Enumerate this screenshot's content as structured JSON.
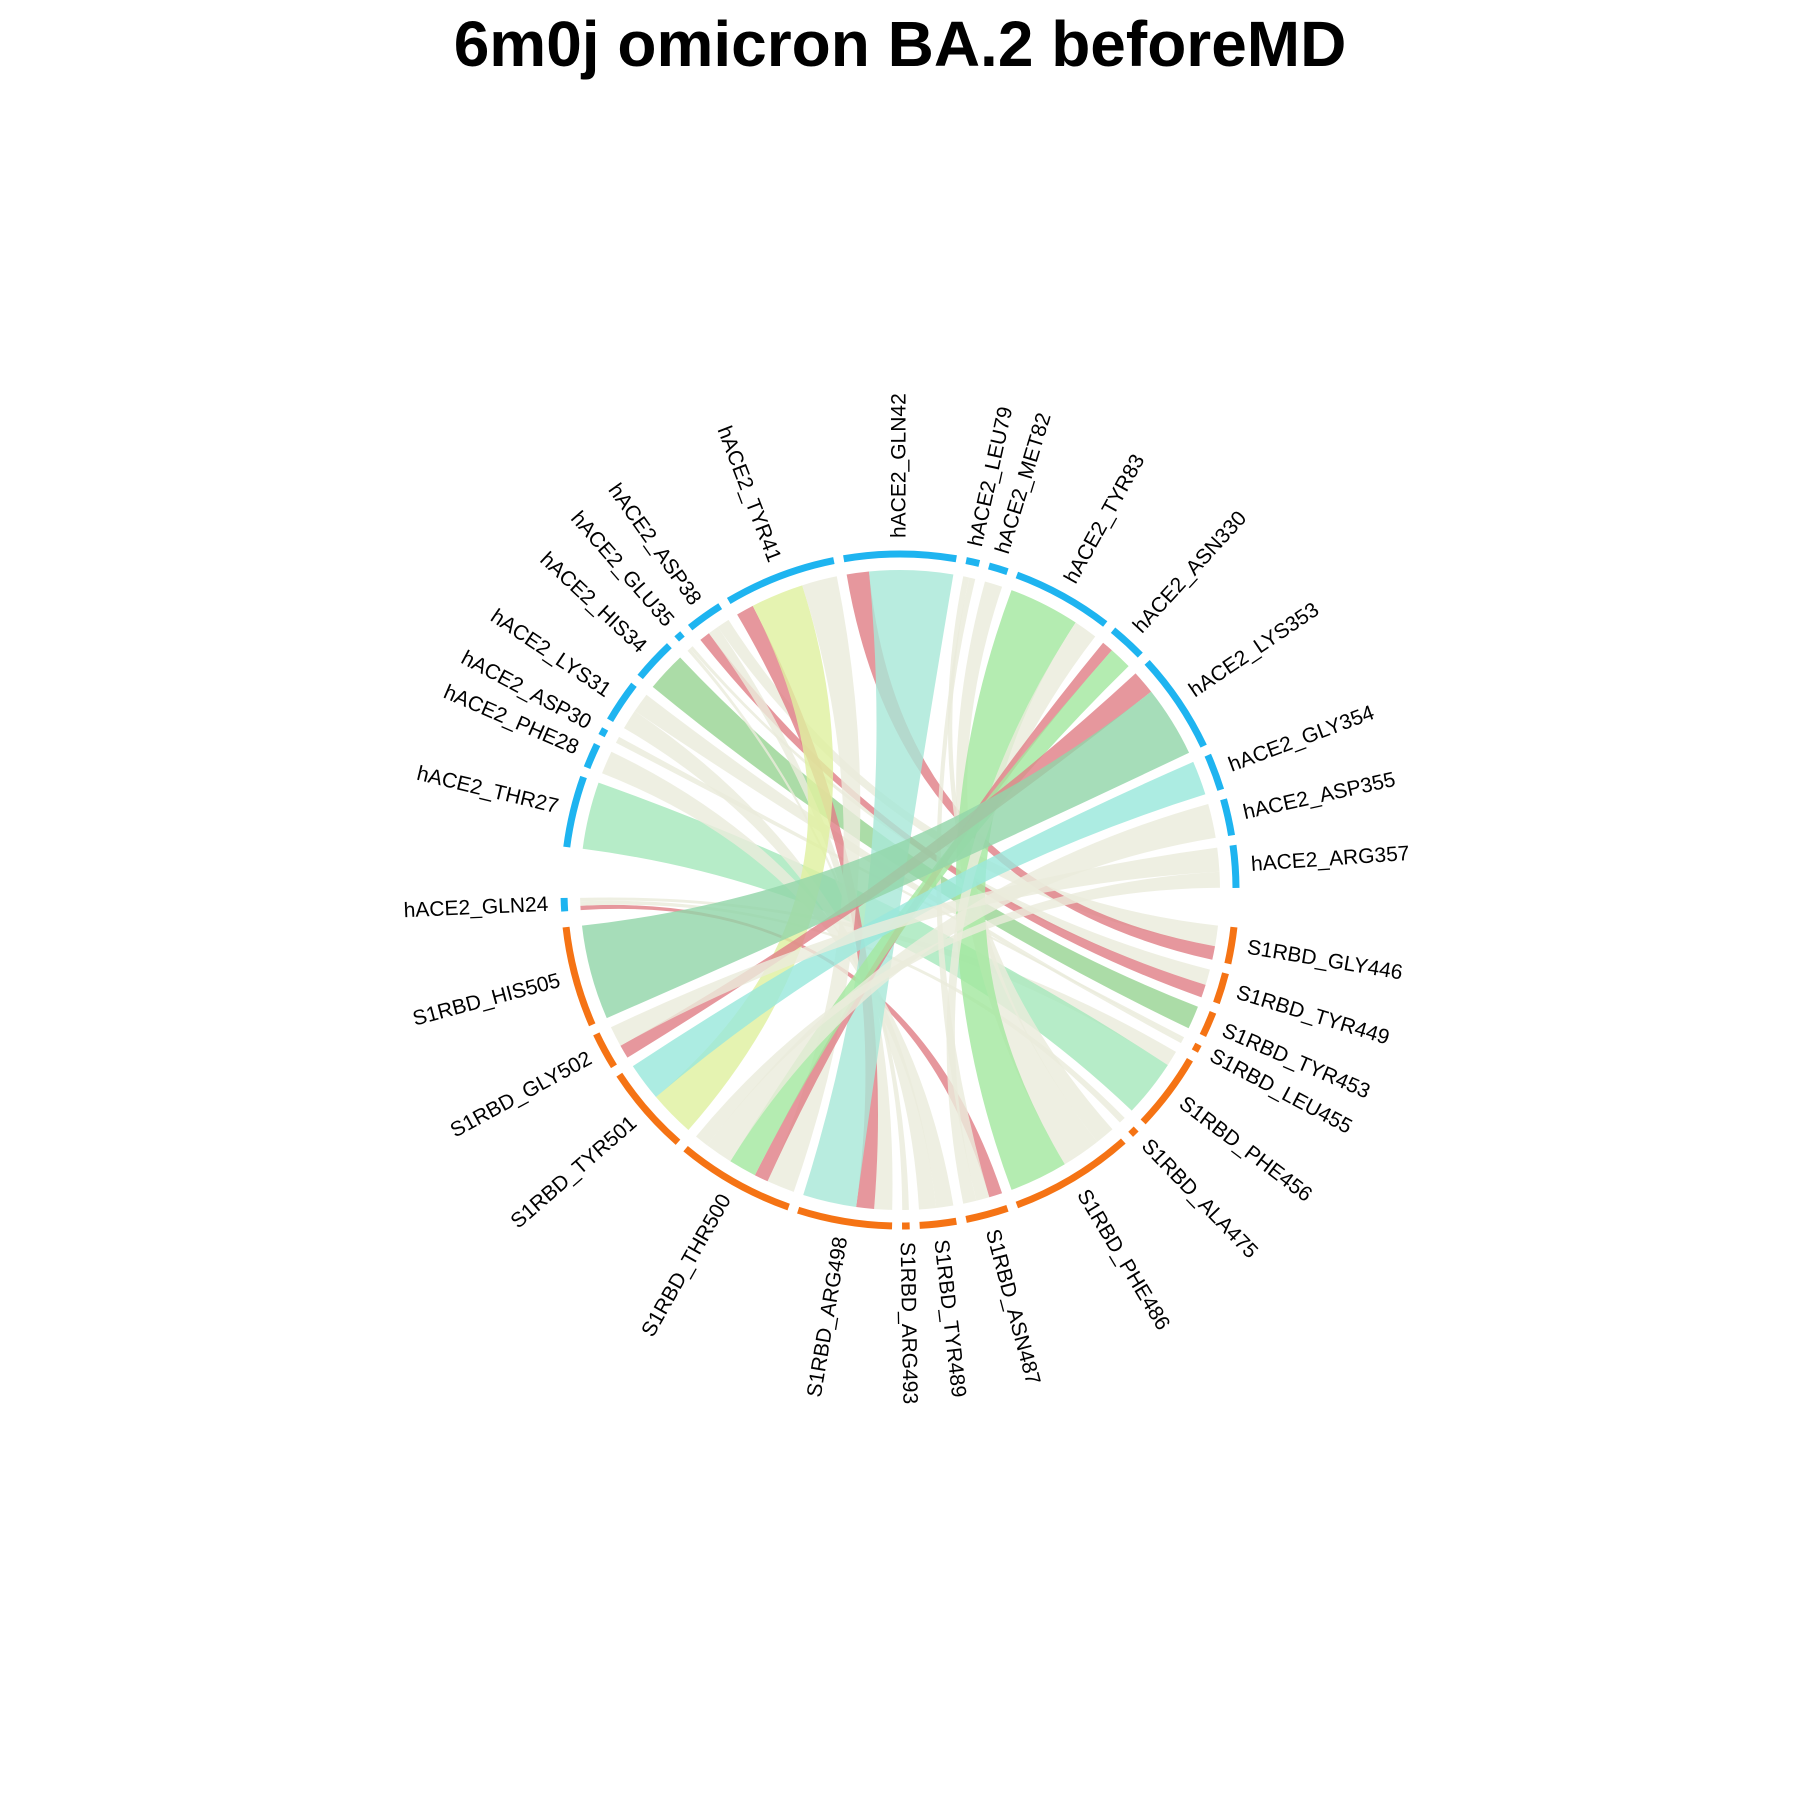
{
  "chart_data": {
    "type": "chord",
    "title": "6m0j omicron BA.2 beforeMD",
    "group_colors": {
      "hACE2": "#1eb4f0",
      "S1RBD": "#f57314"
    },
    "sectors": [
      {
        "name": "hACE2_GLN24",
        "group": "hACE2"
      },
      {
        "name": "hACE2_THR27",
        "group": "hACE2"
      },
      {
        "name": "hACE2_PHE28",
        "group": "hACE2"
      },
      {
        "name": "hACE2_ASP30",
        "group": "hACE2"
      },
      {
        "name": "hACE2_LYS31",
        "group": "hACE2"
      },
      {
        "name": "hACE2_HIS34",
        "group": "hACE2"
      },
      {
        "name": "hACE2_GLU35",
        "group": "hACE2"
      },
      {
        "name": "hACE2_ASP38",
        "group": "hACE2"
      },
      {
        "name": "hACE2_TYR41",
        "group": "hACE2"
      },
      {
        "name": "hACE2_GLN42",
        "group": "hACE2"
      },
      {
        "name": "hACE2_LEU79",
        "group": "hACE2"
      },
      {
        "name": "hACE2_MET82",
        "group": "hACE2"
      },
      {
        "name": "hACE2_TYR83",
        "group": "hACE2"
      },
      {
        "name": "hACE2_ASN330",
        "group": "hACE2"
      },
      {
        "name": "hACE2_LYS353",
        "group": "hACE2"
      },
      {
        "name": "hACE2_GLY354",
        "group": "hACE2"
      },
      {
        "name": "hACE2_ASP355",
        "group": "hACE2"
      },
      {
        "name": "hACE2_ARG357",
        "group": "hACE2"
      },
      {
        "name": "S1RBD_GLY446",
        "group": "S1RBD"
      },
      {
        "name": "S1RBD_TYR449",
        "group": "S1RBD"
      },
      {
        "name": "S1RBD_TYR453",
        "group": "S1RBD"
      },
      {
        "name": "S1RBD_LEU455",
        "group": "S1RBD"
      },
      {
        "name": "S1RBD_PHE456",
        "group": "S1RBD"
      },
      {
        "name": "S1RBD_ALA475",
        "group": "S1RBD"
      },
      {
        "name": "S1RBD_PHE486",
        "group": "S1RBD"
      },
      {
        "name": "S1RBD_ASN487",
        "group": "S1RBD"
      },
      {
        "name": "S1RBD_TYR489",
        "group": "S1RBD"
      },
      {
        "name": "S1RBD_ARG493",
        "group": "S1RBD"
      },
      {
        "name": "S1RBD_ARG498",
        "group": "S1RBD"
      },
      {
        "name": "S1RBD_THR500",
        "group": "S1RBD"
      },
      {
        "name": "S1RBD_TYR501",
        "group": "S1RBD"
      },
      {
        "name": "S1RBD_GLY502",
        "group": "S1RBD"
      },
      {
        "name": "S1RBD_HIS505",
        "group": "S1RBD"
      }
    ],
    "links": [
      {
        "source": "hACE2_GLN24",
        "target": "S1RBD_ASN487",
        "value": 1,
        "color": "#e08088"
      },
      {
        "source": "hACE2_GLN24",
        "target": "S1RBD_ALA475",
        "value": 1,
        "color": "#eaecdc"
      },
      {
        "source": "hACE2_GLN24",
        "target": "S1RBD_PHE456",
        "value": 0.8,
        "color": "#eaecdc"
      },
      {
        "source": "hACE2_THR27",
        "target": "S1RBD_PHE456",
        "value": 3,
        "color": "#a6e8bc"
      },
      {
        "source": "hACE2_PHE28",
        "target": "S1RBD_TYR489",
        "value": 1.5,
        "color": "#eaecdc"
      },
      {
        "source": "hACE2_ASP30",
        "target": "S1RBD_LEU455",
        "value": 1,
        "color": "#eaecdc"
      },
      {
        "source": "hACE2_LYS31",
        "target": "S1RBD_TYR489",
        "value": 1.5,
        "color": "#eaecdc"
      },
      {
        "source": "hACE2_LYS31",
        "target": "S1RBD_LEU455",
        "value": 1.5,
        "color": "#eaecdc"
      },
      {
        "source": "hACE2_HIS34",
        "target": "S1RBD_TYR453",
        "value": 2.5,
        "color": "#98d494"
      },
      {
        "source": "hACE2_GLU35",
        "target": "S1RBD_ARG493",
        "value": 1.2,
        "color": "#eaecdc"
      },
      {
        "source": "hACE2_GLU35",
        "target": "S1RBD_TYR449",
        "value": 1.2,
        "color": "#eaecdc"
      },
      {
        "source": "hACE2_ASP38",
        "target": "S1RBD_TYR449",
        "value": 1,
        "color": "#e08088"
      },
      {
        "source": "hACE2_ASP38",
        "target": "S1RBD_ARG498",
        "value": 1,
        "color": "#eaecdc"
      },
      {
        "source": "hACE2_ASP38",
        "target": "S1RBD_GLY446",
        "value": 1.2,
        "color": "#eaecdc"
      },
      {
        "source": "hACE2_TYR41",
        "target": "S1RBD_ARG498",
        "value": 1,
        "color": "#e08088"
      },
      {
        "source": "hACE2_TYR41",
        "target": "S1RBD_TYR501",
        "value": 3,
        "color": "#dff0a0"
      },
      {
        "source": "hACE2_TYR41",
        "target": "S1RBD_THR500",
        "value": 2,
        "color": "#eaecdc"
      },
      {
        "source": "hACE2_GLN42",
        "target": "S1RBD_GLY446",
        "value": 0.8,
        "color": "#e08088"
      },
      {
        "source": "hACE2_GLN42",
        "target": "S1RBD_ARG498",
        "value": 3,
        "color": "#a8e8d8"
      },
      {
        "source": "hACE2_LEU79",
        "target": "S1RBD_PHE486",
        "value": 1,
        "color": "#eaecdc"
      },
      {
        "source": "hACE2_LEU79",
        "target": "S1RBD_ASN487",
        "value": 1,
        "color": "#eaecdc"
      },
      {
        "source": "hACE2_MET82",
        "target": "S1RBD_PHE486",
        "value": 2,
        "color": "#eaecdc"
      },
      {
        "source": "hACE2_TYR83",
        "target": "S1RBD_PHE486",
        "value": 3,
        "color": "#a4e8a0"
      },
      {
        "source": "hACE2_TYR83",
        "target": "S1RBD_ASN487",
        "value": 1,
        "color": "#eaecdc"
      },
      {
        "source": "hACE2_ASN330",
        "target": "S1RBD_THR500",
        "value": 1,
        "color": "#e08088"
      },
      {
        "source": "hACE2_ASN330",
        "target": "S1RBD_THR500",
        "value": 2,
        "color": "#a4e8a0"
      },
      {
        "source": "hACE2_LYS353",
        "target": "S1RBD_GLY502",
        "value": 1,
        "color": "#e08088"
      },
      {
        "source": "hACE2_LYS353",
        "target": "S1RBD_HIS505",
        "value": 3,
        "color": "#92d6aa"
      },
      {
        "source": "hACE2_GLY354",
        "target": "S1RBD_TYR501",
        "value": 2.5,
        "color": "#9ae8dc"
      },
      {
        "source": "hACE2_ASP355",
        "target": "S1RBD_THR500",
        "value": 2,
        "color": "#eaecdc"
      },
      {
        "source": "hACE2_ARG357",
        "target": "S1RBD_GLY502",
        "value": 1.5,
        "color": "#eaecdc"
      },
      {
        "source": "hACE2_ARG357",
        "target": "S1RBD_THR500",
        "value": 1,
        "color": "#eaecdc"
      }
    ],
    "legend": "none",
    "grid": false
  }
}
